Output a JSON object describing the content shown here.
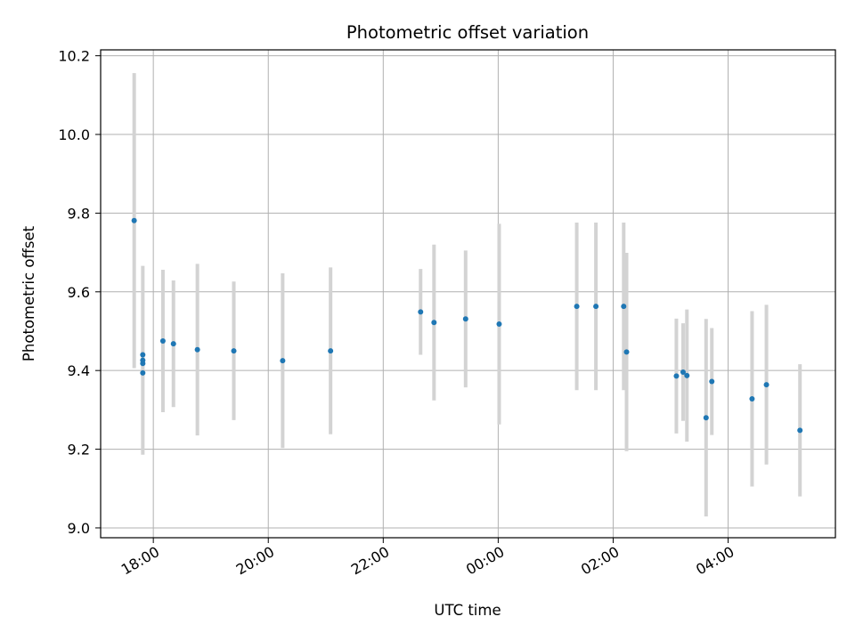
{
  "chart_data": {
    "type": "scatter",
    "title": "Photometric offset variation",
    "xlabel": "UTC time",
    "ylabel": "Photometric offset",
    "grid": true,
    "legend": "none",
    "xlim": [
      "2024-01-01T17:05",
      "2024-01-02T05:52"
    ],
    "ylim": [
      8.975,
      10.215
    ],
    "x_ticks": [
      "18:00",
      "20:00",
      "22:00",
      "00:00",
      "02:00",
      "04:00"
    ],
    "y_ticks": [
      "9.0",
      "9.2",
      "9.4",
      "9.6",
      "9.8",
      "10.0",
      "10.2"
    ],
    "colors": {
      "point": "#1f77b4",
      "errorbar": "#d3d3d3",
      "grid": "#b0b0b0"
    },
    "series": [
      {
        "points": [
          {
            "x": "2024-01-01T17:40",
            "y": 9.781,
            "err": 0.375
          },
          {
            "x": "2024-01-01T17:49",
            "y": 9.44,
            "err": 0.01
          },
          {
            "x": "2024-01-01T17:49",
            "y": 9.418,
            "err": 0.01
          },
          {
            "x": "2024-01-01T17:49",
            "y": 9.394,
            "err": 0.01
          },
          {
            "x": "2024-01-01T17:49",
            "y": 9.426,
            "err": 0.24
          },
          {
            "x": "2024-01-01T18:10",
            "y": 9.475,
            "err": 0.181
          },
          {
            "x": "2024-01-01T18:21",
            "y": 9.468,
            "err": 0.161
          },
          {
            "x": "2024-01-01T18:46",
            "y": 9.453,
            "err": 0.218
          },
          {
            "x": "2024-01-01T19:24",
            "y": 9.45,
            "err": 0.176
          },
          {
            "x": "2024-01-01T20:15",
            "y": 9.425,
            "err": 0.222
          },
          {
            "x": "2024-01-01T21:05",
            "y": 9.45,
            "err": 0.212
          },
          {
            "x": "2024-01-01T22:39",
            "y": 9.549,
            "err": 0.109
          },
          {
            "x": "2024-01-01T22:53",
            "y": 9.522,
            "err": 0.198
          },
          {
            "x": "2024-01-01T23:26",
            "y": 9.531,
            "err": 0.174
          },
          {
            "x": "2024-01-02T00:01",
            "y": 9.518,
            "err": 0.255
          },
          {
            "x": "2024-01-02T01:22",
            "y": 9.563,
            "err": 0.213
          },
          {
            "x": "2024-01-02T01:42",
            "y": 9.563,
            "err": 0.213
          },
          {
            "x": "2024-01-02T02:11",
            "y": 9.563,
            "err": 0.213
          },
          {
            "x": "2024-01-02T02:14",
            "y": 9.447,
            "err": 0.252
          },
          {
            "x": "2024-01-02T03:06",
            "y": 9.386,
            "err": 0.146
          },
          {
            "x": "2024-01-02T03:13",
            "y": 9.396,
            "err": 0.124
          },
          {
            "x": "2024-01-02T03:17",
            "y": 9.387,
            "err": 0.168
          },
          {
            "x": "2024-01-02T03:37",
            "y": 9.28,
            "err": 0.251
          },
          {
            "x": "2024-01-02T03:43",
            "y": 9.372,
            "err": 0.136
          },
          {
            "x": "2024-01-02T04:25",
            "y": 9.328,
            "err": 0.223
          },
          {
            "x": "2024-01-02T04:40",
            "y": 9.364,
            "err": 0.203
          },
          {
            "x": "2024-01-02T05:15",
            "y": 9.248,
            "err": 0.168
          }
        ]
      }
    ]
  }
}
